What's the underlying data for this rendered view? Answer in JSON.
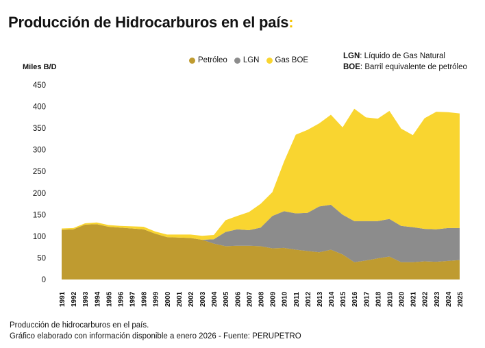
{
  "page_title": "Producción de Hidrocarburos en el país",
  "title_colon": ":",
  "notes": [
    {
      "abbr": "LGN",
      "text": "Líquido de Gas Natural"
    },
    {
      "abbr": "BOE",
      "text": "Barril equivalente de petróleo"
    }
  ],
  "footer": {
    "line1": "Producción de hidrocarburos en el país.",
    "line2": "Gráfico elaborado con información disponible a enero 2026 - Fuente: PERUPETRO"
  },
  "colors": {
    "petroleo": "#bf9b30",
    "lgn": "#8c8c8c",
    "gas": "#f9d530",
    "accent": "#f5c400"
  },
  "chart_data": {
    "type": "area",
    "stacked": true,
    "ylabel": "Miles B/D",
    "ylim": [
      0,
      450
    ],
    "yticks": [
      0,
      50,
      100,
      150,
      200,
      250,
      300,
      350,
      400,
      450
    ],
    "grid": false,
    "legend_position": "top-center",
    "x": [
      "1991",
      "1992",
      "1993",
      "1994",
      "1995",
      "1996",
      "1997",
      "1998",
      "1999",
      "2000",
      "2001",
      "2002",
      "2003",
      "2004",
      "2005",
      "2006",
      "2007",
      "2008",
      "2009",
      "2010",
      "2011",
      "2012",
      "2013",
      "2014",
      "2015",
      "2016",
      "2017",
      "2018",
      "2019",
      "2020",
      "2021",
      "2022",
      "2023",
      "2024",
      "2025"
    ],
    "series": [
      {
        "name": "Petróleo",
        "color": "#bf9b30",
        "values": [
          115,
          116,
          127,
          128,
          122,
          120,
          118,
          116,
          106,
          98,
          97,
          96,
          92,
          83,
          77,
          78,
          78,
          77,
          72,
          73,
          69,
          66,
          63,
          69,
          58,
          40,
          44,
          49,
          53,
          40,
          40,
          42,
          41,
          43,
          45
        ]
      },
      {
        "name": "LGN",
        "color": "#8c8c8c",
        "values": [
          0,
          0,
          0,
          0,
          0,
          0,
          0,
          0,
          0,
          0,
          0,
          0,
          0,
          10,
          33,
          38,
          36,
          43,
          75,
          85,
          84,
          88,
          106,
          104,
          92,
          95,
          91,
          86,
          87,
          84,
          81,
          75,
          75,
          76,
          74
        ]
      },
      {
        "name": "Gas BOE",
        "color": "#f9d530",
        "values": [
          3,
          3,
          3,
          4,
          4,
          4,
          5,
          6,
          5,
          6,
          7,
          8,
          9,
          10,
          27,
          31,
          42,
          55,
          55,
          115,
          182,
          192,
          192,
          208,
          202,
          260,
          240,
          237,
          250,
          225,
          213,
          256,
          272,
          268,
          265
        ]
      }
    ]
  }
}
